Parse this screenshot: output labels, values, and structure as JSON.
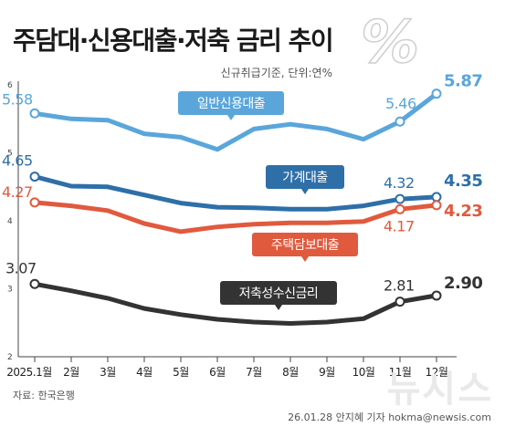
{
  "header": {
    "title": "주담대·신용대출·저축 금리 추이",
    "subtitle": "신규취급기준, 단위:연%",
    "unit_symbol": "%"
  },
  "footer": {
    "source": "자료: 한국은행",
    "byline": "26.01.28 안지혜 기자 hokma@newsis.com",
    "watermark": "뉴시스"
  },
  "chart_data": {
    "type": "line",
    "title": "주담대·신용대출·저축 금리 추이",
    "subtitle": "신규취급기준, 단위:연%",
    "xlabel": "",
    "ylabel": "",
    "categories": [
      "2025.1월",
      "2월",
      "3월",
      "4월",
      "5월",
      "6월",
      "7월",
      "8월",
      "9월",
      "10월",
      "11월",
      "12월"
    ],
    "ylim": [
      2,
      6
    ],
    "yticks": [
      2,
      3,
      4,
      5,
      6
    ],
    "grid": false,
    "series": [
      {
        "name": "일반신용대출",
        "color": "#5aa6db",
        "values": [
          5.58,
          5.5,
          5.48,
          5.28,
          5.23,
          5.05,
          5.35,
          5.42,
          5.35,
          5.2,
          5.46,
          5.87
        ],
        "labels": [
          {
            "index": 0,
            "text": "5.58"
          },
          {
            "index": 10,
            "text": "5.46"
          },
          {
            "index": 11,
            "text": "5.87"
          }
        ]
      },
      {
        "name": "가계대출",
        "color": "#2e6fa8",
        "values": [
          4.65,
          4.51,
          4.5,
          4.38,
          4.26,
          4.2,
          4.19,
          4.17,
          4.17,
          4.22,
          4.32,
          4.35
        ],
        "labels": [
          {
            "index": 0,
            "text": "4.65"
          },
          {
            "index": 10,
            "text": "4.32"
          },
          {
            "index": 11,
            "text": "4.35"
          }
        ]
      },
      {
        "name": "주택담보대출",
        "color": "#e05a3e",
        "values": [
          4.27,
          4.22,
          4.15,
          3.96,
          3.84,
          3.91,
          3.95,
          3.97,
          3.97,
          3.99,
          4.17,
          4.23
        ],
        "labels": [
          {
            "index": 0,
            "text": "4.27"
          },
          {
            "index": 10,
            "text": "4.17"
          },
          {
            "index": 11,
            "text": "4.23"
          }
        ]
      },
      {
        "name": "저축성수신금리",
        "color": "#333333",
        "values": [
          3.07,
          2.97,
          2.86,
          2.71,
          2.62,
          2.55,
          2.51,
          2.49,
          2.51,
          2.56,
          2.81,
          2.9
        ],
        "labels": [
          {
            "index": 0,
            "text": "3.07"
          },
          {
            "index": 10,
            "text": "2.81"
          },
          {
            "index": 11,
            "text": "2.90"
          }
        ]
      }
    ]
  }
}
